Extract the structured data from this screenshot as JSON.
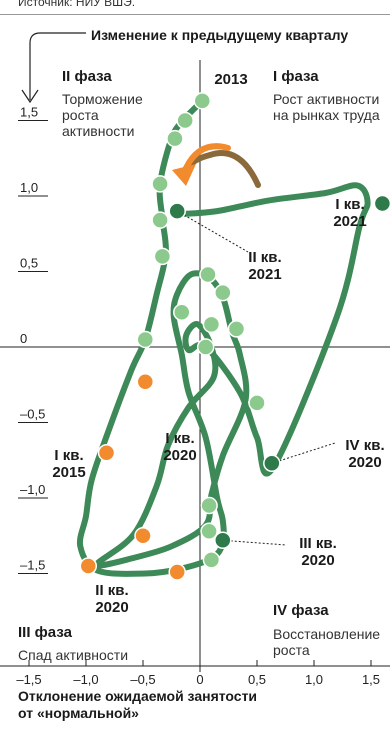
{
  "source_text": "Источник: НИУ ВШЭ.",
  "header": "Изменение к предыдущему кварталу",
  "phases": {
    "I": {
      "title": "I фаза",
      "desc": [
        "Рост активности",
        "на рынках труда"
      ]
    },
    "II": {
      "title": "II фаза",
      "desc": [
        "Торможение",
        "роста",
        "активности"
      ]
    },
    "III": {
      "title": "III фаза",
      "desc": [
        "Спад активности"
      ]
    },
    "IV": {
      "title": "IV фаза",
      "desc": [
        "Восстановление",
        "роста"
      ]
    }
  },
  "x_axis_title": [
    "Отклонение ожидаемой занятости",
    "от «нормальной»"
  ],
  "colors": {
    "line": "#3d8a58",
    "point_light": "#8cc98c",
    "point_dark": "#2e7a4a",
    "point_orange": "#f28a2e",
    "arrow_orange": "#f28a2e",
    "arrow_brown": "#8a6a3a",
    "grid": "#bbbbbb",
    "axis": "#222222",
    "point_stroke": "#ffffff"
  },
  "chart_data": {
    "type": "scatter",
    "xlim": [
      -1.6,
      1.6
    ],
    "ylim": [
      -1.7,
      1.9
    ],
    "x_ticks": [
      -1.5,
      -1.0,
      -0.5,
      0,
      0.5,
      1.0,
      1.5
    ],
    "x_tick_labels": [
      "–1,5",
      "–1,0",
      "–0,5",
      "0",
      "0,5",
      "1,0",
      "1,5"
    ],
    "y_ticks": [
      1.5,
      1.0,
      0.5,
      0,
      -0.5,
      -1.0,
      -1.5
    ],
    "y_tick_labels": [
      "1,5",
      "1,0",
      "0,5",
      "0",
      "–0,5",
      "–1,0",
      "–1,5"
    ],
    "xlabel": "Отклонение ожидаемой занятости от «нормальной»",
    "ylabel": "Изменение к предыдущему кварталу",
    "path": [
      {
        "x": 0.02,
        "y": 1.63
      },
      {
        "x": -0.15,
        "y": 1.5
      },
      {
        "x": -0.25,
        "y": 1.38
      },
      {
        "x": -0.35,
        "y": 1.08
      },
      {
        "x": -0.33,
        "y": 0.85
      },
      {
        "x": -0.3,
        "y": 0.62
      },
      {
        "x": -0.38,
        "y": 0.35
      },
      {
        "x": -0.48,
        "y": 0.05
      },
      {
        "x": -0.6,
        "y": -0.15
      },
      {
        "x": -0.8,
        "y": -0.55
      },
      {
        "x": -0.95,
        "y": -0.88
      },
      {
        "x": -1.0,
        "y": -1.12
      },
      {
        "x": -1.05,
        "y": -1.32
      },
      {
        "x": -0.9,
        "y": -1.48
      },
      {
        "x": -0.48,
        "y": -1.5
      },
      {
        "x": -0.18,
        "y": -1.47
      },
      {
        "x": 0.1,
        "y": -1.4
      },
      {
        "x": 0.2,
        "y": -1.3
      },
      {
        "x": 0.2,
        "y": -1.15
      },
      {
        "x": 0.15,
        "y": -1.0
      },
      {
        "x": 0.05,
        "y": -0.6
      },
      {
        "x": -0.1,
        "y": -0.3
      },
      {
        "x": -0.16,
        "y": -0.05
      },
      {
        "x": -0.23,
        "y": 0.2
      },
      {
        "x": -0.2,
        "y": 0.35
      },
      {
        "x": -0.08,
        "y": 0.48
      },
      {
        "x": 0.08,
        "y": 0.46
      },
      {
        "x": 0.2,
        "y": 0.33
      },
      {
        "x": 0.28,
        "y": 0.1
      },
      {
        "x": 0.35,
        "y": -0.05
      },
      {
        "x": 0.4,
        "y": -0.35
      },
      {
        "x": 0.2,
        "y": -0.72
      },
      {
        "x": 0.1,
        "y": -0.98
      },
      {
        "x": 0.05,
        "y": -1.18
      },
      {
        "x": -0.25,
        "y": -1.32
      },
      {
        "x": -0.6,
        "y": -1.4
      },
      {
        "x": -0.9,
        "y": -1.45
      },
      {
        "x": -0.88,
        "y": -1.42
      },
      {
        "x": -0.58,
        "y": -1.24
      },
      {
        "x": -0.38,
        "y": -0.92
      },
      {
        "x": -0.28,
        "y": -0.65
      },
      {
        "x": -0.1,
        "y": -0.4
      },
      {
        "x": 0.12,
        "y": -0.2
      },
      {
        "x": 0.1,
        "y": 0.0
      },
      {
        "x": -0.02,
        "y": 0.15
      },
      {
        "x": -0.12,
        "y": 0.08
      },
      {
        "x": -0.1,
        "y": -0.02
      },
      {
        "x": 0.05,
        "y": 0.0
      },
      {
        "x": 0.35,
        "y": -0.3
      },
      {
        "x": 0.5,
        "y": -0.6
      },
      {
        "x": 0.64,
        "y": -0.8
      },
      {
        "x": 1.2,
        "y": 0.2
      },
      {
        "x": 1.4,
        "y": 0.8
      },
      {
        "x": 1.47,
        "y": 0.96
      },
      {
        "x": 1.38,
        "y": 1.07
      },
      {
        "x": 1.1,
        "y": 1.02
      },
      {
        "x": 0.6,
        "y": 0.97
      },
      {
        "x": 0.15,
        "y": 0.9
      },
      {
        "x": -0.18,
        "y": 0.88
      }
    ],
    "points": [
      {
        "x": 0.02,
        "y": 1.63,
        "kind": "light"
      },
      {
        "x": -0.13,
        "y": 1.5,
        "kind": "light"
      },
      {
        "x": -0.22,
        "y": 1.38,
        "kind": "light"
      },
      {
        "x": -0.35,
        "y": 1.08,
        "kind": "light"
      },
      {
        "x": -0.35,
        "y": 0.84,
        "kind": "light"
      },
      {
        "x": -0.33,
        "y": 0.6,
        "kind": "light"
      },
      {
        "x": -0.48,
        "y": 0.05,
        "kind": "light"
      },
      {
        "x": -0.48,
        "y": -0.23,
        "kind": "orange"
      },
      {
        "x": -0.82,
        "y": -0.7,
        "kind": "orange"
      },
      {
        "x": -0.5,
        "y": -1.25,
        "kind": "orange"
      },
      {
        "x": -0.98,
        "y": -1.45,
        "kind": "orange"
      },
      {
        "x": -0.2,
        "y": -1.49,
        "kind": "orange"
      },
      {
        "x": 0.1,
        "y": -1.41,
        "kind": "light"
      },
      {
        "x": 0.08,
        "y": -1.22,
        "kind": "light"
      },
      {
        "x": 0.08,
        "y": -1.05,
        "kind": "light"
      },
      {
        "x": 0.2,
        "y": -1.28,
        "kind": "dark"
      },
      {
        "x": 0.63,
        "y": -0.77,
        "kind": "dark"
      },
      {
        "x": 1.6,
        "y": 0.95,
        "kind": "dark"
      },
      {
        "x": -0.2,
        "y": 0.9,
        "kind": "dark"
      },
      {
        "x": 0.07,
        "y": 0.48,
        "kind": "light"
      },
      {
        "x": 0.2,
        "y": 0.36,
        "kind": "light"
      },
      {
        "x": -0.16,
        "y": 0.23,
        "kind": "light"
      },
      {
        "x": 0.1,
        "y": 0.15,
        "kind": "light"
      },
      {
        "x": 0.32,
        "y": 0.12,
        "kind": "light"
      },
      {
        "x": 0.05,
        "y": 0.0,
        "kind": "light"
      },
      {
        "x": 0.5,
        "y": -0.37,
        "kind": "light"
      }
    ],
    "annotations": [
      {
        "id": "q2013",
        "lines": [
          "2013"
        ]
      },
      {
        "id": "q1-2015",
        "lines": [
          "I кв.",
          "2015"
        ]
      },
      {
        "id": "q1-2020",
        "lines": [
          "I кв.",
          "2020"
        ]
      },
      {
        "id": "q2-2020",
        "lines": [
          "II кв.",
          "2020"
        ]
      },
      {
        "id": "q3-2020",
        "lines": [
          "III кв.",
          "2020"
        ]
      },
      {
        "id": "q4-2020",
        "lines": [
          "IV кв.",
          "2020"
        ]
      },
      {
        "id": "q1-2021",
        "lines": [
          "I кв.",
          "2021"
        ]
      },
      {
        "id": "q2-2021",
        "lines": [
          "II кв.",
          "2021"
        ]
      }
    ]
  }
}
